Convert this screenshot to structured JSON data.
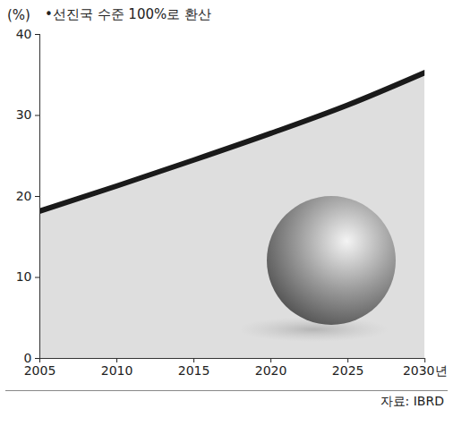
{
  "chart_data": {
    "type": "area",
    "subtitle": "•선진국 수준 100%로 환산",
    "y_label": "(%)",
    "source": "자료: IBRD",
    "x": [
      2005,
      2010,
      2015,
      2020,
      2025,
      2030
    ],
    "values": [
      18.2,
      21.3,
      24.5,
      27.8,
      31.3,
      35.3
    ],
    "color": "#1a1a1a",
    "xlim": [
      2005,
      2030
    ],
    "xticks": [
      2005,
      2010,
      2015,
      2020,
      2025,
      {
        "value": 2030,
        "label": "2030년"
      }
    ],
    "ylim": [
      0,
      40
    ],
    "yticks": [
      0,
      10,
      20,
      30,
      40
    ],
    "grid": false
  }
}
